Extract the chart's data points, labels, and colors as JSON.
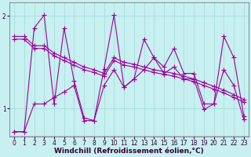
{
  "background_color": "#c8f0f0",
  "line_color": "#990099",
  "marker_style": "+",
  "marker_size": 4,
  "linewidth": 0.8,
  "xlim": [
    -0.5,
    23.5
  ],
  "ylim": [
    0.7,
    2.15
  ],
  "yticks": [
    1,
    2
  ],
  "xticks": [
    0,
    1,
    2,
    3,
    4,
    5,
    6,
    7,
    8,
    9,
    10,
    11,
    12,
    13,
    14,
    15,
    16,
    17,
    18,
    19,
    20,
    21,
    22,
    23
  ],
  "xlabel": "Windchill (Refroidissement éolien,°C)",
  "xlabel_fontsize": 6.5,
  "tick_fontsize": 5.5,
  "grid_color": "#a0d8d8",
  "series": [
    [
      0.75,
      0.75,
      1.87,
      2.01,
      1.05,
      1.87,
      1.3,
      0.9,
      0.87,
      1.43,
      2.01,
      1.23,
      1.32,
      1.75,
      1.55,
      1.45,
      1.65,
      1.38,
      1.38,
      1.05,
      1.05,
      1.78,
      1.55,
      0.92
    ],
    [
      1.78,
      1.78,
      1.68,
      1.68,
      1.6,
      1.55,
      1.5,
      1.45,
      1.42,
      1.38,
      1.55,
      1.5,
      1.48,
      1.45,
      1.42,
      1.4,
      1.38,
      1.35,
      1.32,
      1.28,
      1.24,
      1.2,
      1.15,
      1.1
    ],
    [
      1.75,
      1.75,
      1.65,
      1.65,
      1.57,
      1.52,
      1.47,
      1.42,
      1.39,
      1.35,
      1.52,
      1.47,
      1.45,
      1.42,
      1.39,
      1.37,
      1.35,
      1.32,
      1.29,
      1.25,
      1.21,
      1.17,
      1.12,
      1.07
    ],
    [
      0.75,
      0.75,
      1.05,
      1.05,
      1.12,
      1.18,
      1.25,
      0.87,
      0.87,
      1.25,
      1.42,
      1.23,
      1.32,
      1.42,
      1.55,
      1.38,
      1.45,
      1.32,
      1.32,
      0.99,
      1.05,
      1.42,
      1.25,
      0.88
    ]
  ]
}
